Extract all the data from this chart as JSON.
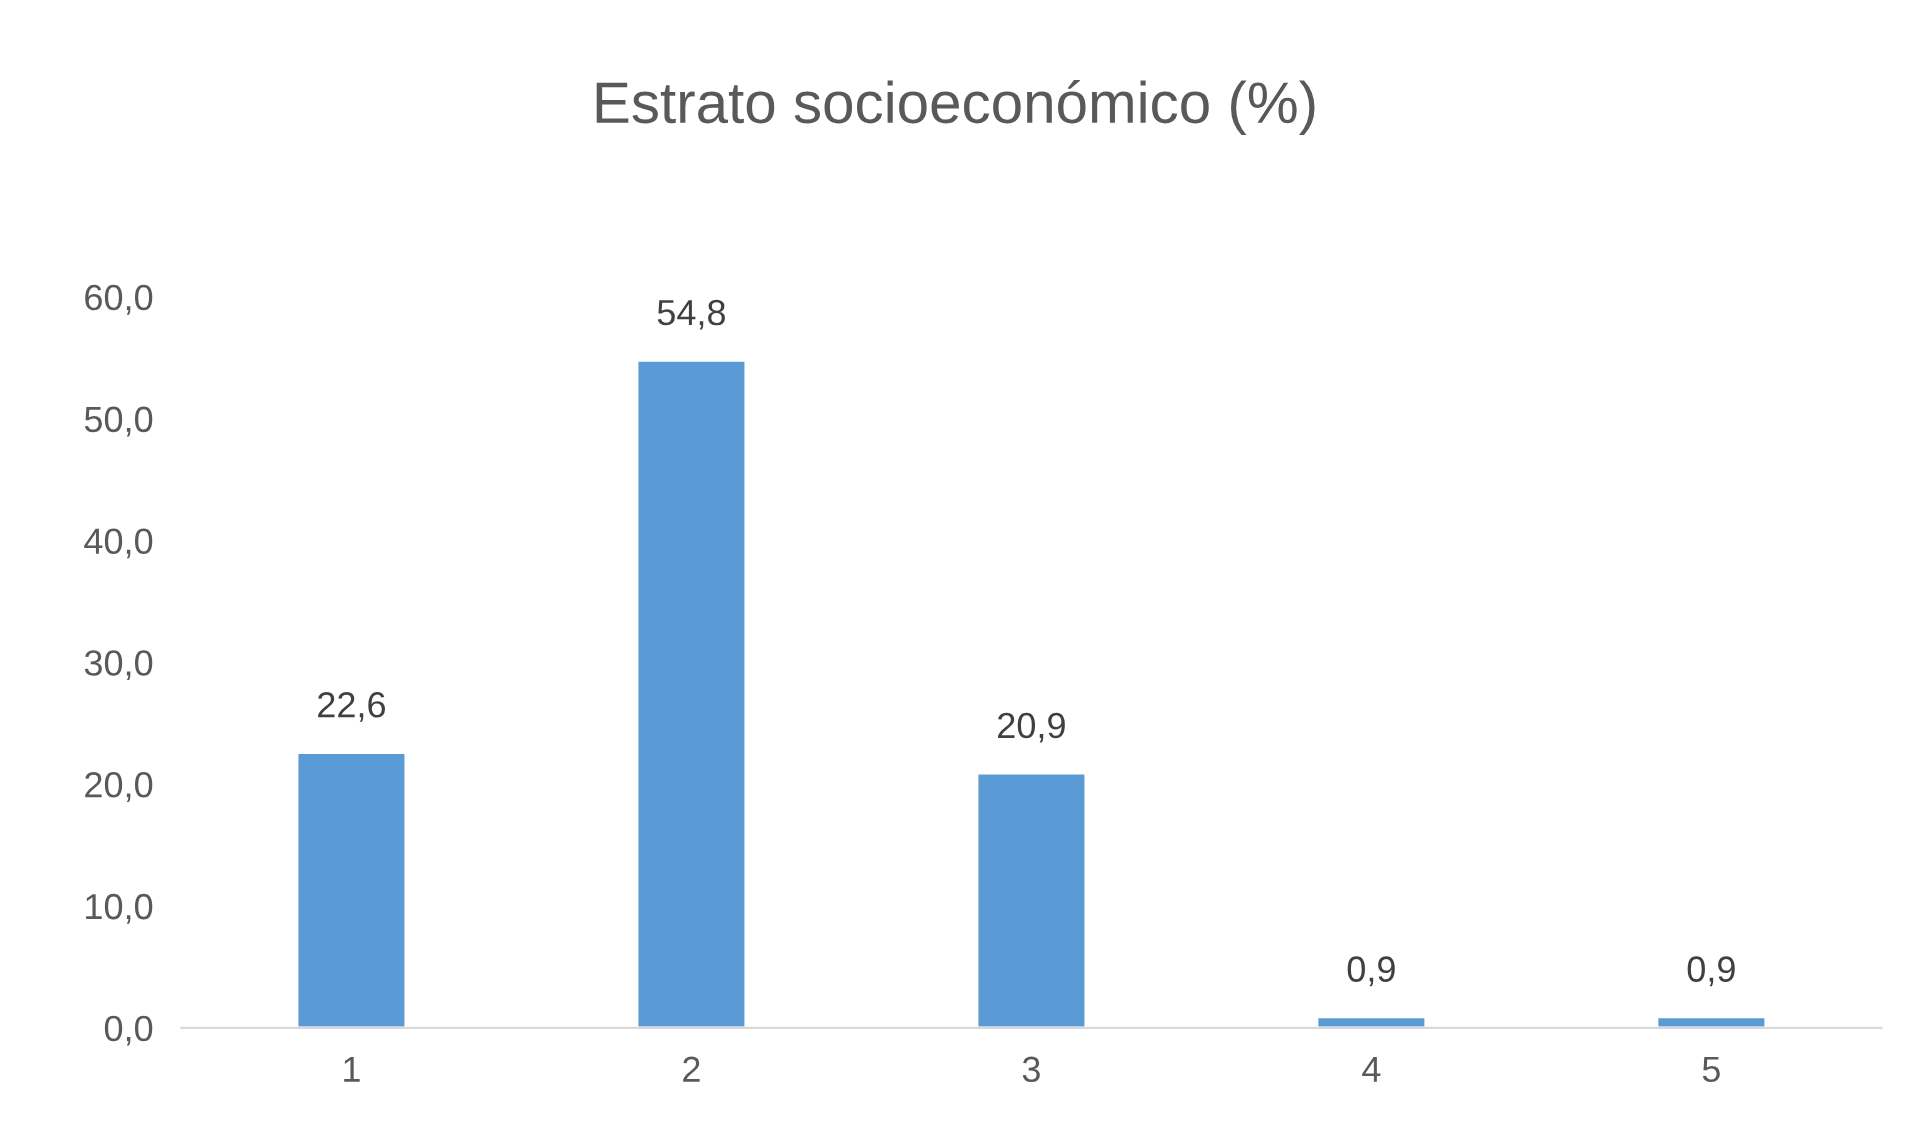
{
  "chart_data": {
    "type": "bar",
    "title": "Estrato socioeconómico (%)",
    "categories": [
      "1",
      "2",
      "3",
      "4",
      "5"
    ],
    "values": [
      22.6,
      54.8,
      20.9,
      0.9,
      0.9
    ],
    "value_labels": [
      "22,6",
      "54,8",
      "20,9",
      "0,9",
      "0,9"
    ],
    "color": "#5b9bd5",
    "ylim": [
      0,
      60
    ],
    "yticks": [
      {
        "value": 0,
        "label": "0,0"
      },
      {
        "value": 10,
        "label": "10,0"
      },
      {
        "value": 20,
        "label": "20,0"
      },
      {
        "value": 30,
        "label": "30,0"
      },
      {
        "value": 40,
        "label": "40,0"
      },
      {
        "value": 50,
        "label": "50,0"
      },
      {
        "value": 60,
        "label": "60,0"
      }
    ],
    "grid": false,
    "legend": false
  }
}
